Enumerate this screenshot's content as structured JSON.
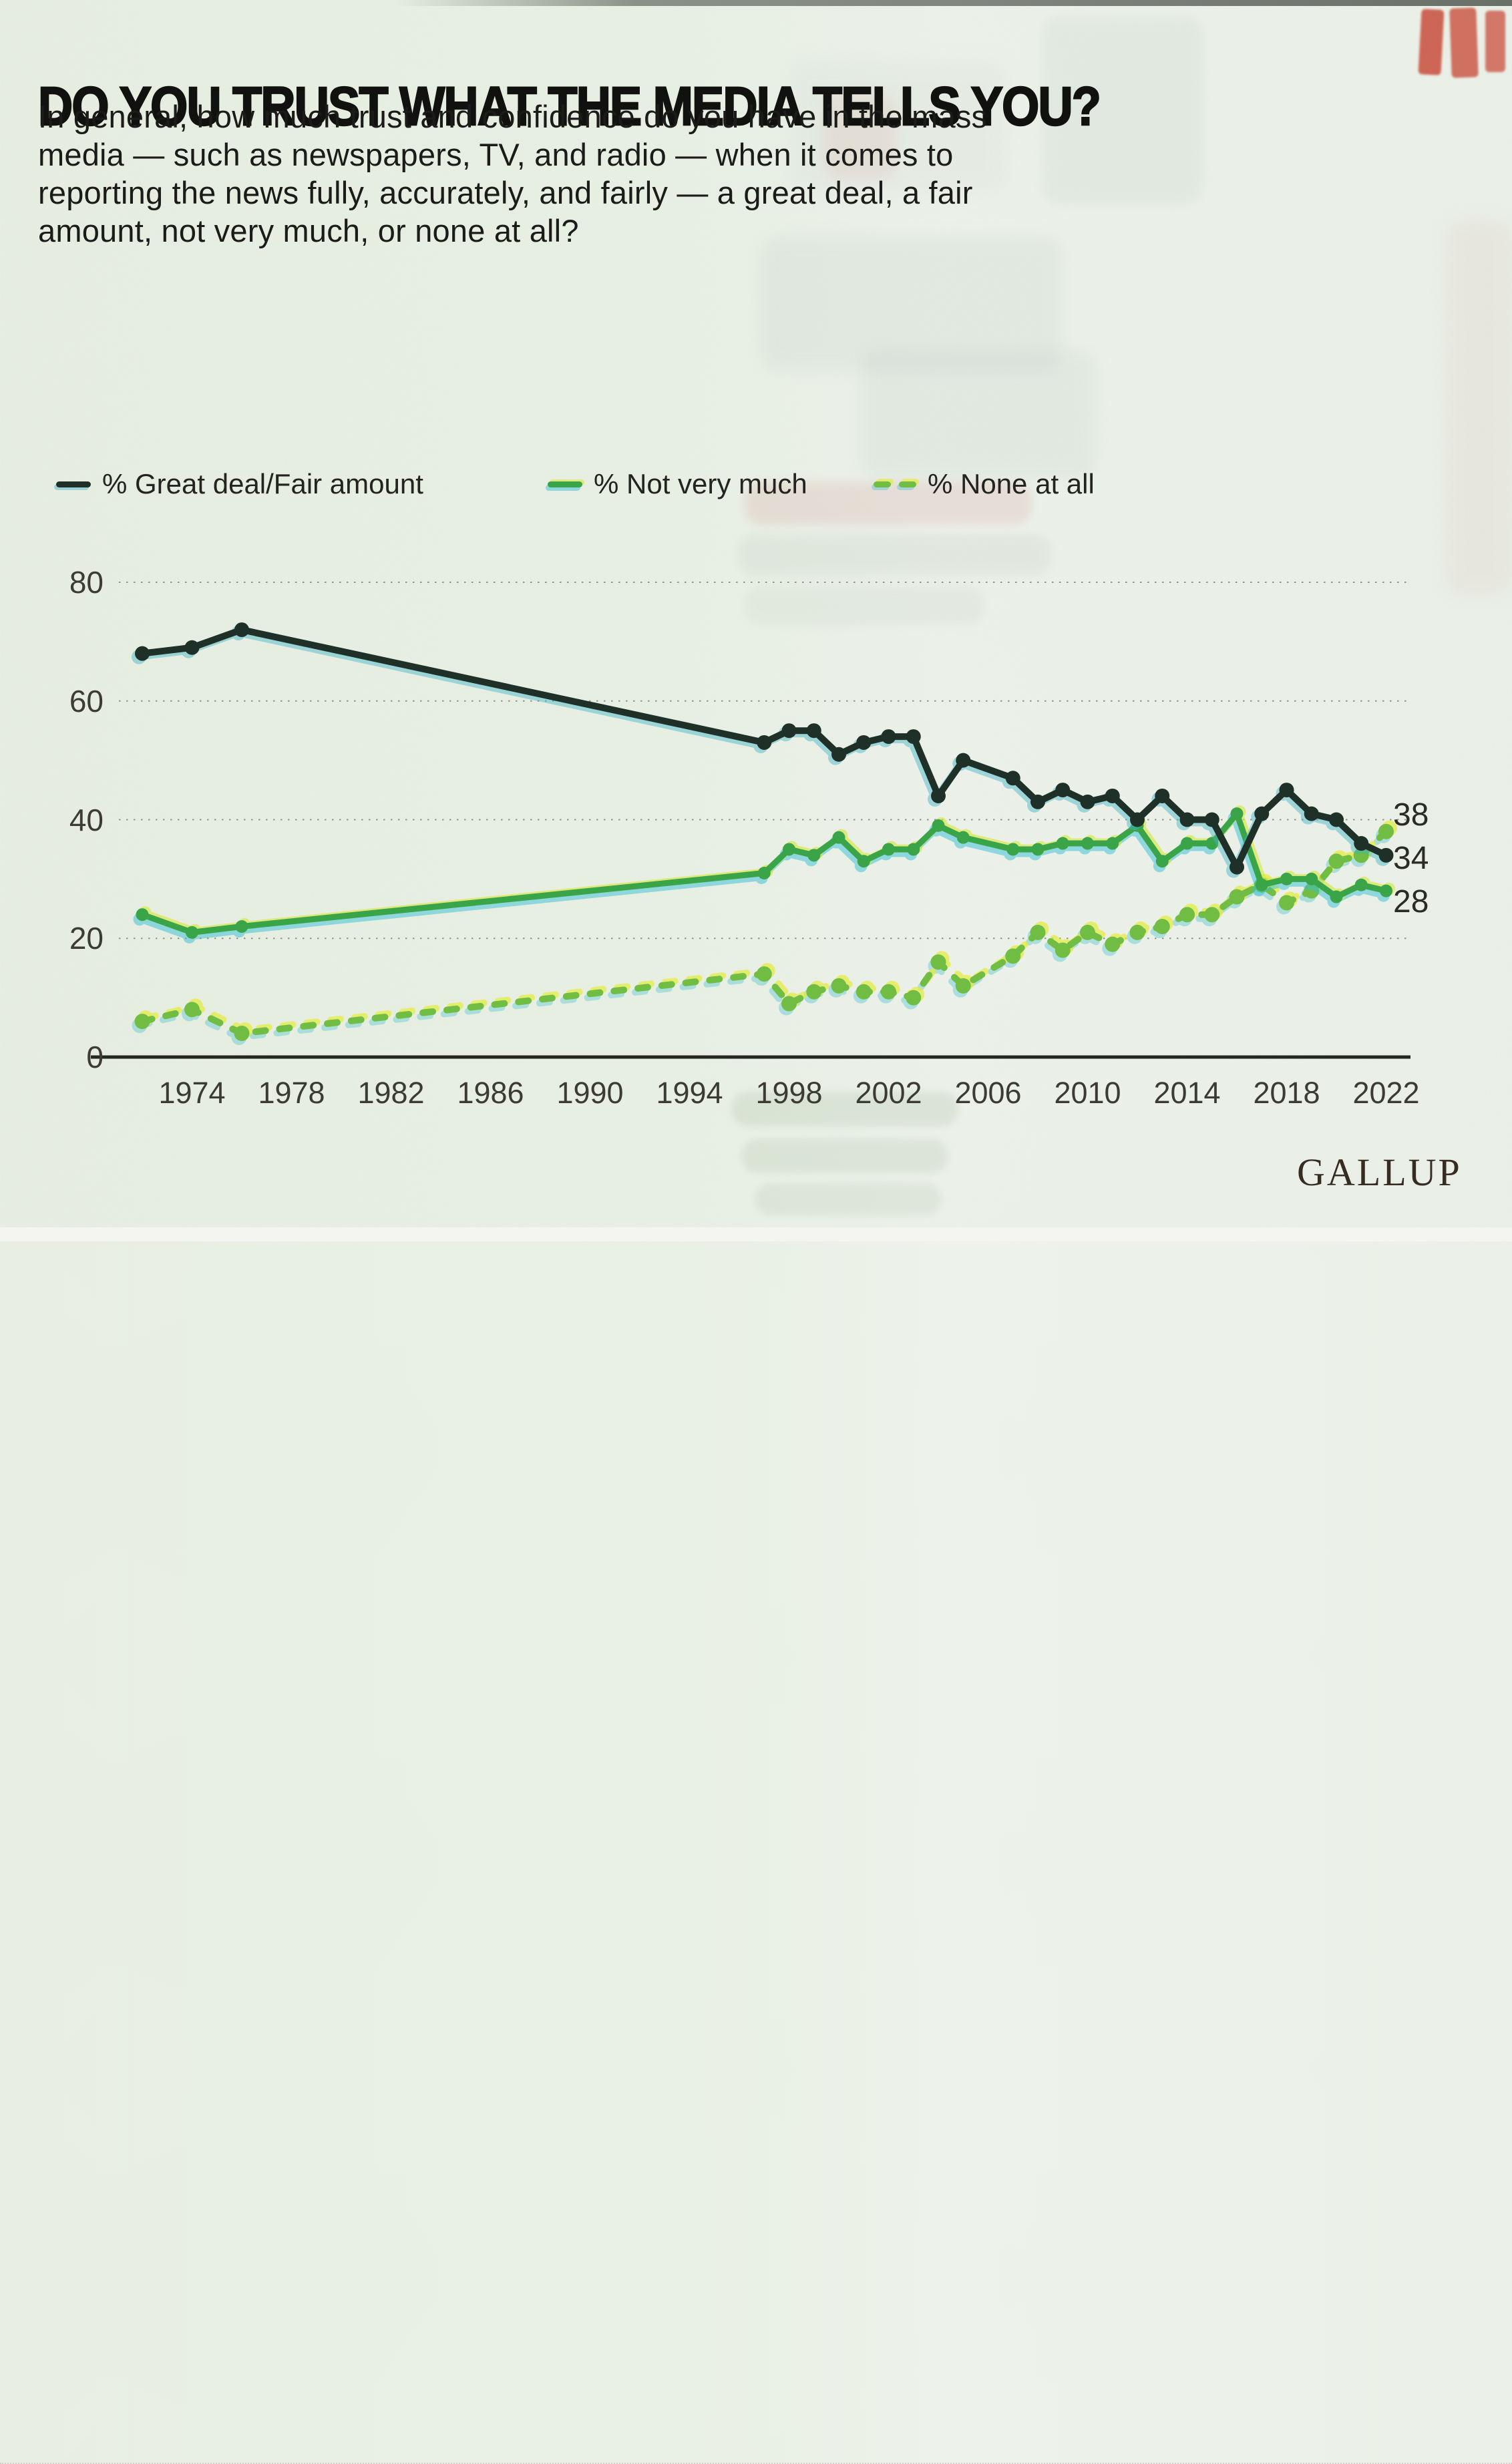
{
  "page": {
    "background_color": "#e9f0e4",
    "source_label": "GALLUP"
  },
  "title": "DO YOU TRUST WHAT THE MEDIA TELLS YOU?",
  "subtitle_lines": [
    "In general, how much trust and confidence do you have in the mass",
    "media — such as newspapers, TV, and radio — when it comes to",
    "reporting the news fully, accurately, and fairly — a great deal, a fair",
    "amount, not very much, or none at all?"
  ],
  "legend": {
    "items": [
      {
        "label": "% Great deal/Fair amount",
        "color": "#1e3027",
        "style": "solid"
      },
      {
        "label": "% Not very much",
        "color": "#3aa549",
        "style": "solid"
      },
      {
        "label": "% None at all",
        "color": "#72bf44",
        "style": "dashed"
      }
    ]
  },
  "chart_data": {
    "type": "line",
    "title": "DO YOU TRUST WHAT THE MEDIA TELLS YOU?",
    "x_years": [
      1972,
      1974,
      1976,
      1997,
      1998,
      1999,
      2000,
      2001,
      2002,
      2003,
      2004,
      2005,
      2007,
      2008,
      2009,
      2010,
      2011,
      2012,
      2013,
      2014,
      2015,
      2016,
      2017,
      2018,
      2019,
      2020,
      2021,
      2022
    ],
    "series": [
      {
        "name": "% Great deal/Fair amount",
        "color": "#1e3027",
        "style": "solid",
        "values": [
          68,
          69,
          72,
          53,
          55,
          55,
          51,
          53,
          54,
          54,
          44,
          50,
          47,
          43,
          45,
          43,
          44,
          40,
          44,
          40,
          40,
          32,
          41,
          45,
          41,
          40,
          36,
          34
        ]
      },
      {
        "name": "% Not very much",
        "color": "#3aa549",
        "style": "solid",
        "values": [
          24,
          21,
          22,
          31,
          35,
          34,
          37,
          33,
          35,
          35,
          39,
          37,
          35,
          35,
          36,
          36,
          36,
          39,
          33,
          36,
          36,
          41,
          29,
          30,
          30,
          27,
          29,
          28
        ]
      },
      {
        "name": "% None at all",
        "color": "#72bf44",
        "style": "dashed",
        "values": [
          6,
          8,
          4,
          14,
          9,
          11,
          12,
          11,
          11,
          10,
          16,
          12,
          17,
          21,
          18,
          21,
          19,
          21,
          22,
          24,
          24,
          27,
          29,
          26,
          28,
          33,
          34,
          38
        ]
      }
    ],
    "ylim": [
      0,
      80
    ],
    "yticks": [
      80,
      60,
      40,
      20,
      0
    ],
    "xticks": [
      1974,
      1978,
      1982,
      1986,
      1990,
      1994,
      1998,
      2002,
      2006,
      2010,
      2014,
      2018,
      2022
    ],
    "grid": "dotted-horizontal",
    "legend_position": "top-left",
    "end_labels": [
      {
        "value": 38,
        "series": "% None at all"
      },
      {
        "value": 34,
        "series": "% Great deal/Fair amount"
      },
      {
        "value": 28,
        "series": "% Not very much"
      }
    ],
    "source": "GALLUP",
    "grid_color": "#82877a",
    "axis_color": "#23271f",
    "fringe_colors": {
      "cyan": "#35c2d8",
      "yellow": "#e6ee3e"
    }
  }
}
